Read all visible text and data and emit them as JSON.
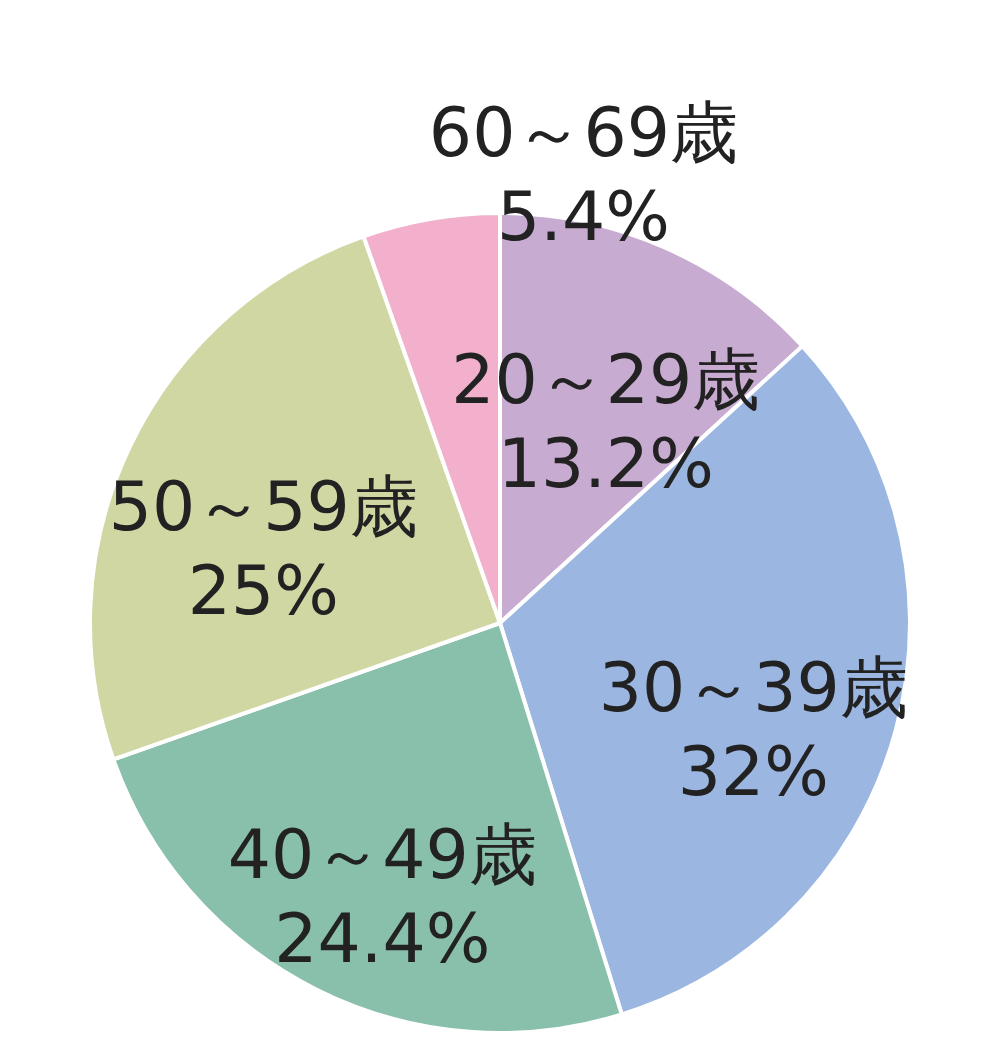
{
  "chart_data": {
    "type": "pie",
    "categories": [
      "20～29歳",
      "30～39歳",
      "40～49歳",
      "50～59歳",
      "60～69歳"
    ],
    "values": [
      13.2,
      32,
      24.4,
      25,
      5.4
    ],
    "value_labels": [
      "13.2%",
      "32%",
      "24.4%",
      "25%",
      "5.4%"
    ],
    "colors": [
      "#c8abd1",
      "#9ab6e1",
      "#89c0ab",
      "#d1d7a3",
      "#f2b0cd"
    ]
  }
}
